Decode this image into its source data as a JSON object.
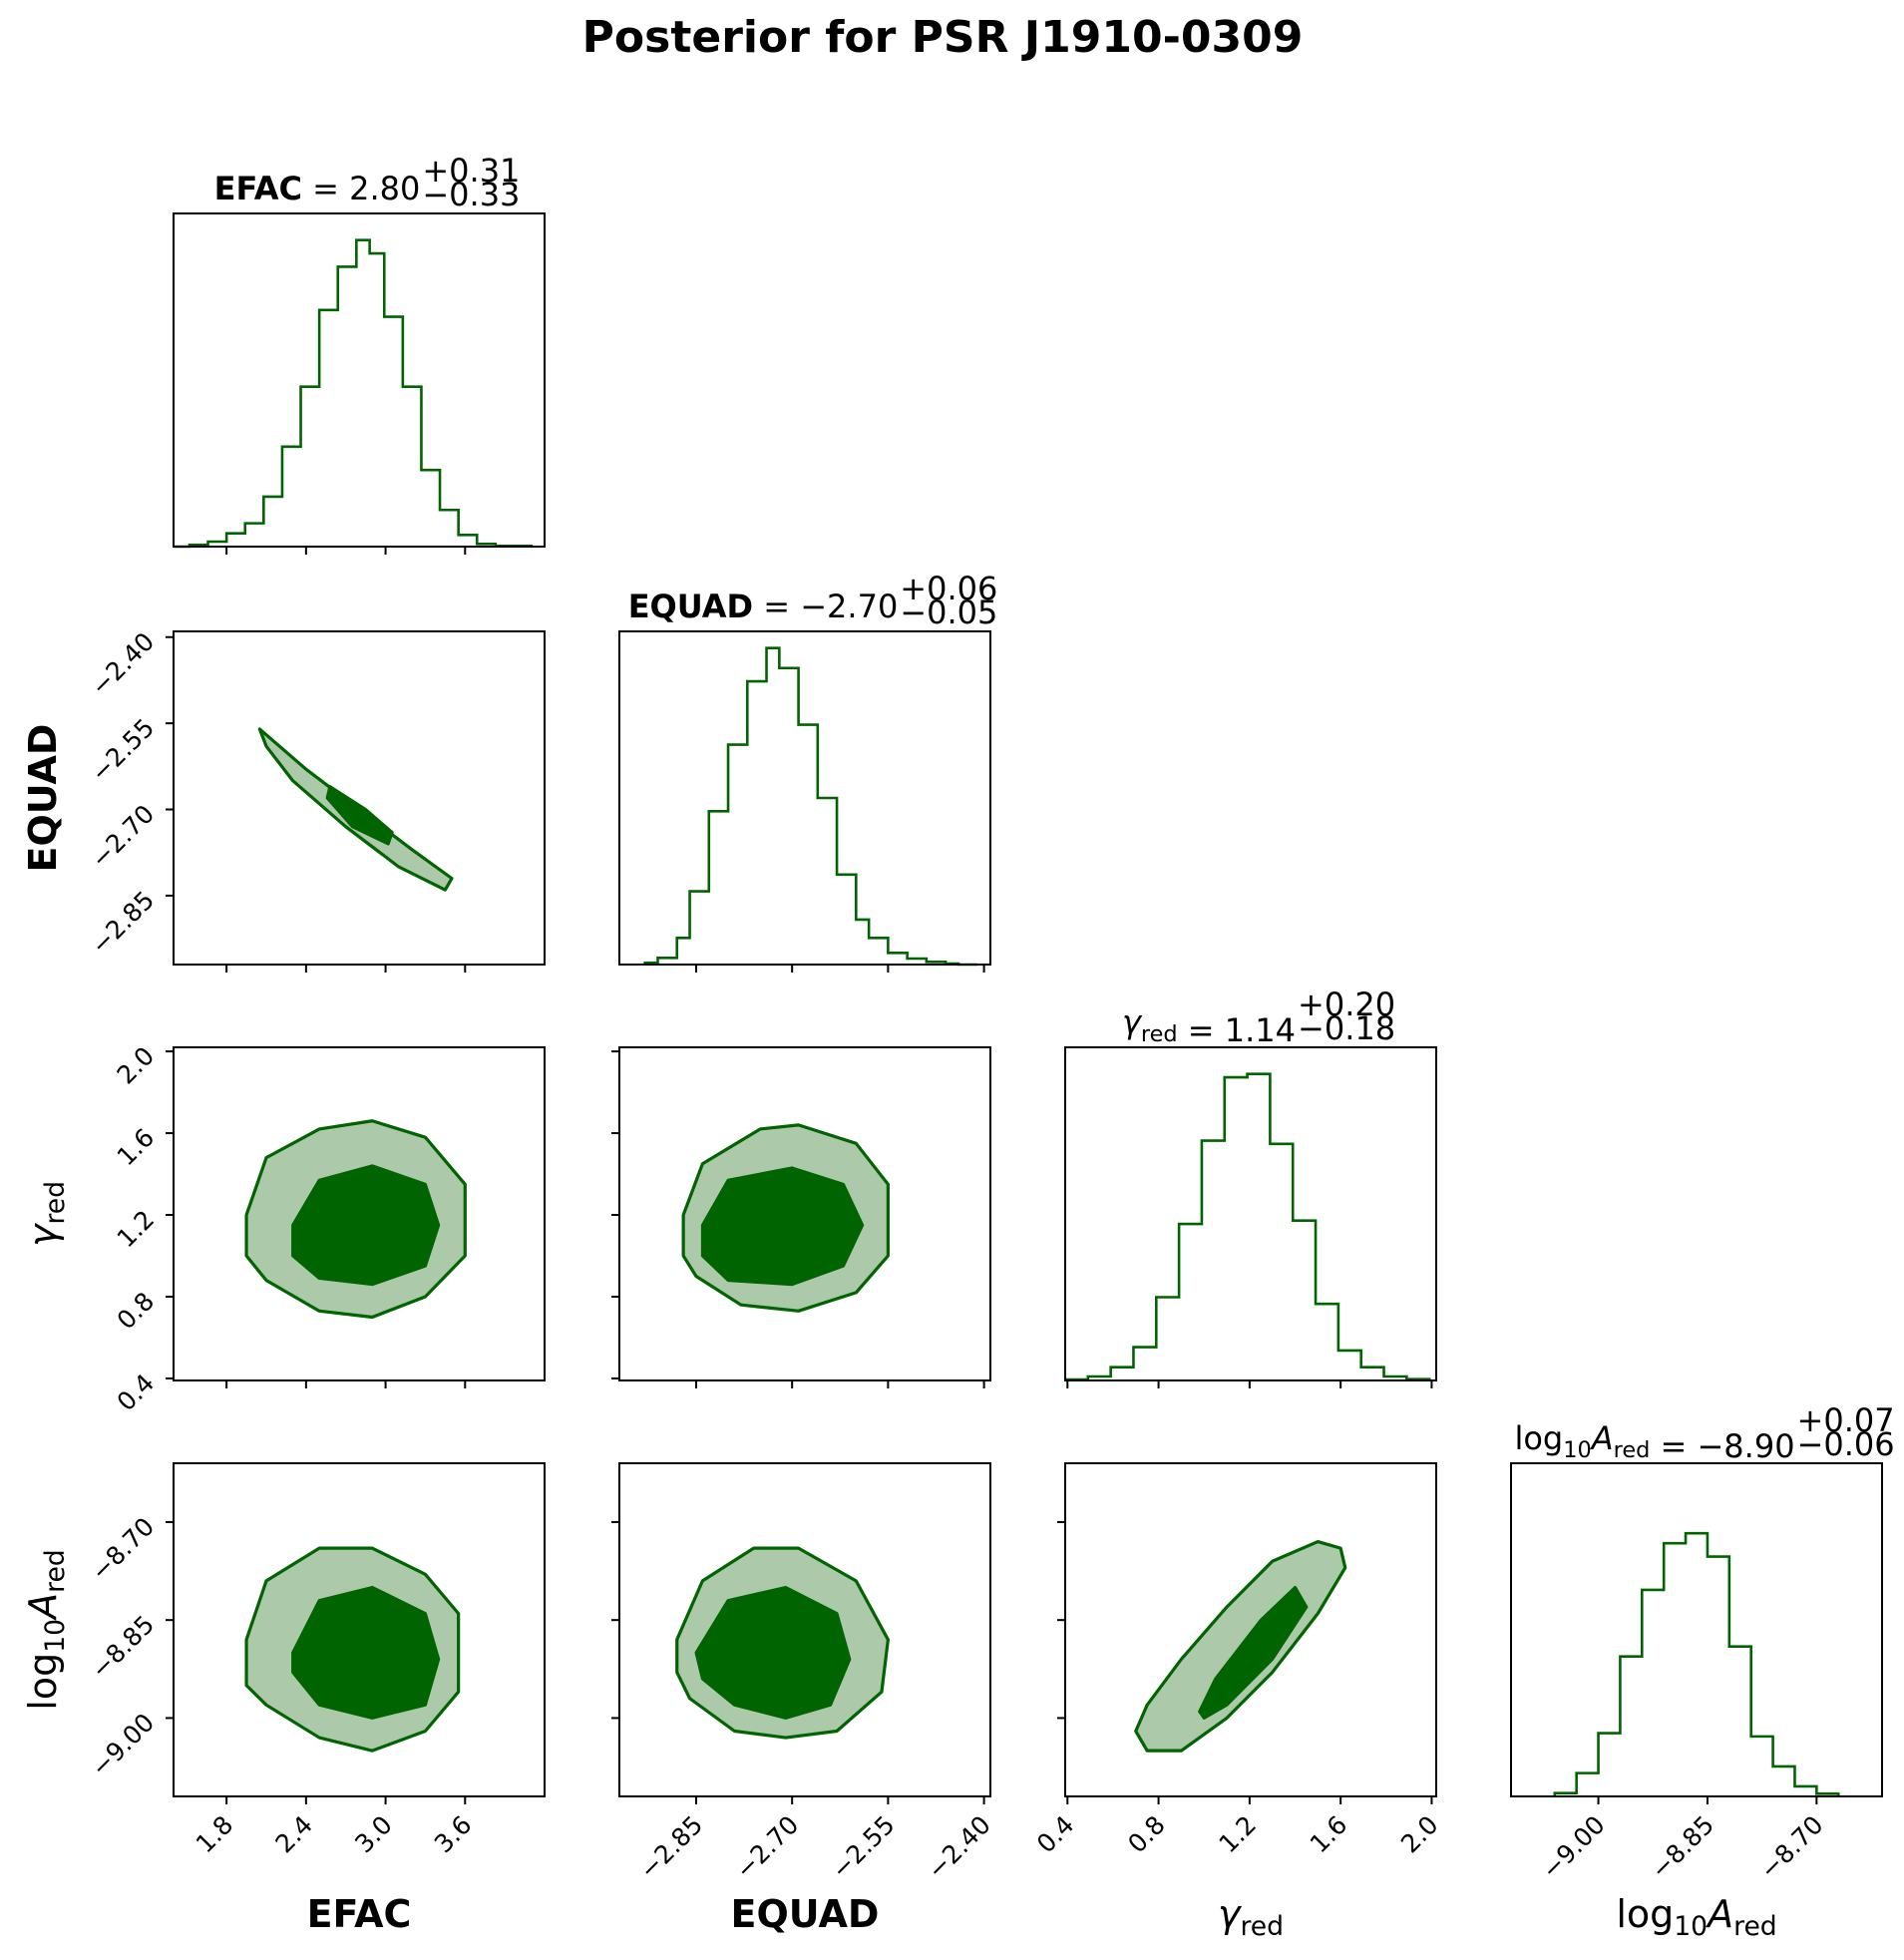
{
  "figure": {
    "title": "Posterior for PSR J1910-0309"
  },
  "parameters": [
    {
      "key": "efac",
      "name": "EFAC",
      "bold": true,
      "median": "2.80",
      "plus": "+0.31",
      "minus": "−0.33"
    },
    {
      "key": "equad",
      "name": "EQUAD",
      "bold": true,
      "median": "−2.70",
      "plus": "+0.06",
      "minus": "−0.05"
    },
    {
      "key": "gamma",
      "name": "γ",
      "sub": "red",
      "bold": false,
      "median": "1.14",
      "plus": "+0.20",
      "minus": "−0.18"
    },
    {
      "key": "log10a",
      "name": "log",
      "name_sub": "10",
      "name2": "A",
      "sub": "red",
      "bold": false,
      "median": "−8.90",
      "plus": "+0.07",
      "minus": "−0.06"
    }
  ],
  "chart_data": {
    "type": "corner",
    "colors": {
      "line": "#006400",
      "outer_fill": "#acc9aa",
      "inner_fill": "#006400"
    },
    "axes": {
      "efac": {
        "range": [
          1.4,
          4.2
        ],
        "ticks": [
          1.8,
          2.4,
          3.0,
          3.6
        ],
        "tick_labels": [
          "1.8",
          "2.4",
          "3.0",
          "3.6"
        ]
      },
      "equad": {
        "range": [
          -2.97,
          -2.39
        ],
        "ticks": [
          -2.85,
          -2.7,
          -2.55,
          -2.4
        ],
        "tick_labels": [
          "−2.85",
          "−2.70",
          "−2.55",
          "−2.40"
        ]
      },
      "gamma": {
        "range": [
          0.39,
          2.02
        ],
        "ticks": [
          0.4,
          0.8,
          1.2,
          1.6,
          2.0
        ],
        "tick_labels": [
          "0.4",
          "0.8",
          "1.2",
          "1.6",
          "2.0"
        ]
      },
      "log10a": {
        "range": [
          -9.12,
          -8.61
        ],
        "ticks": [
          -9.0,
          -8.85,
          -8.7
        ],
        "tick_labels": [
          "−9.00",
          "−8.85",
          "−8.70"
        ]
      }
    },
    "histograms": {
      "efac": {
        "edges": [
          1.4,
          1.52,
          1.66,
          1.8,
          1.94,
          2.08,
          2.22,
          2.36,
          2.5,
          2.64,
          2.78,
          2.88,
          2.99,
          3.13,
          3.27,
          3.41,
          3.55,
          3.69,
          3.83,
          4.1
        ],
        "heights": [
          0,
          0.005,
          0.015,
          0.04,
          0.07,
          0.15,
          0.3,
          0.48,
          0.71,
          0.84,
          0.92,
          0.88,
          0.69,
          0.48,
          0.23,
          0.11,
          0.035,
          0.008,
          0.002
        ]
      },
      "equad": {
        "edges": [
          -2.93,
          -2.91,
          -2.88,
          -2.86,
          -2.83,
          -2.8,
          -2.77,
          -2.74,
          -2.72,
          -2.69,
          -2.66,
          -2.63,
          -2.6,
          -2.58,
          -2.55,
          -2.52,
          -2.49,
          -2.46,
          -2.44,
          -2.41
        ],
        "heights": [
          0.005,
          0.02,
          0.08,
          0.22,
          0.46,
          0.66,
          0.85,
          0.95,
          0.89,
          0.72,
          0.5,
          0.27,
          0.135,
          0.08,
          0.035,
          0.018,
          0.008,
          0.003,
          0.0
        ]
      },
      "gamma": {
        "edges": [
          0.4,
          0.49,
          0.59,
          0.69,
          0.79,
          0.89,
          0.99,
          1.09,
          1.19,
          1.29,
          1.39,
          1.49,
          1.59,
          1.69,
          1.79,
          1.89,
          1.99
        ],
        "heights": [
          0.003,
          0.012,
          0.04,
          0.1,
          0.25,
          0.47,
          0.72,
          0.91,
          0.92,
          0.71,
          0.48,
          0.23,
          0.09,
          0.04,
          0.012,
          0.004
        ]
      },
      "log10a": {
        "edges": [
          -9.06,
          -9.03,
          -9.0,
          -8.97,
          -8.94,
          -8.91,
          -8.88,
          -8.85,
          -8.82,
          -8.79,
          -8.76,
          -8.73,
          -8.7,
          -8.67
        ],
        "heights": [
          0.01,
          0.07,
          0.19,
          0.42,
          0.62,
          0.76,
          0.79,
          0.72,
          0.45,
          0.18,
          0.09,
          0.03,
          0.008
        ]
      }
    },
    "contours": {
      "equad_vs_efac": {
        "outer": [
          [
            2.05,
            -2.56
          ],
          [
            2.4,
            -2.63
          ],
          [
            2.8,
            -2.7
          ],
          [
            3.2,
            -2.77
          ],
          [
            3.5,
            -2.82
          ],
          [
            3.45,
            -2.84
          ],
          [
            3.1,
            -2.8
          ],
          [
            2.7,
            -2.73
          ],
          [
            2.3,
            -2.65
          ],
          [
            2.1,
            -2.59
          ]
        ],
        "inner": [
          [
            2.58,
            -2.66
          ],
          [
            2.85,
            -2.7
          ],
          [
            3.05,
            -2.74
          ],
          [
            3.02,
            -2.76
          ],
          [
            2.75,
            -2.73
          ],
          [
            2.56,
            -2.68
          ]
        ]
      },
      "gamma_vs_efac": {
        "outer": [
          [
            1.95,
            1.2
          ],
          [
            2.1,
            1.48
          ],
          [
            2.5,
            1.62
          ],
          [
            2.9,
            1.66
          ],
          [
            3.3,
            1.58
          ],
          [
            3.6,
            1.35
          ],
          [
            3.6,
            1.0
          ],
          [
            3.3,
            0.8
          ],
          [
            2.9,
            0.7
          ],
          [
            2.5,
            0.73
          ],
          [
            2.1,
            0.88
          ],
          [
            1.95,
            1.0
          ]
        ],
        "inner": [
          [
            2.3,
            1.15
          ],
          [
            2.5,
            1.37
          ],
          [
            2.9,
            1.44
          ],
          [
            3.3,
            1.35
          ],
          [
            3.4,
            1.15
          ],
          [
            3.3,
            0.95
          ],
          [
            2.9,
            0.86
          ],
          [
            2.5,
            0.89
          ],
          [
            2.3,
            1.0
          ]
        ]
      },
      "gamma_vs_equad": {
        "outer": [
          [
            -2.87,
            1.2
          ],
          [
            -2.84,
            1.45
          ],
          [
            -2.75,
            1.62
          ],
          [
            -2.69,
            1.64
          ],
          [
            -2.6,
            1.55
          ],
          [
            -2.55,
            1.35
          ],
          [
            -2.55,
            1.0
          ],
          [
            -2.6,
            0.82
          ],
          [
            -2.69,
            0.73
          ],
          [
            -2.78,
            0.76
          ],
          [
            -2.85,
            0.9
          ],
          [
            -2.87,
            1.0
          ]
        ],
        "inner": [
          [
            -2.84,
            1.15
          ],
          [
            -2.8,
            1.37
          ],
          [
            -2.7,
            1.43
          ],
          [
            -2.62,
            1.35
          ],
          [
            -2.59,
            1.15
          ],
          [
            -2.62,
            0.95
          ],
          [
            -2.7,
            0.86
          ],
          [
            -2.8,
            0.88
          ],
          [
            -2.84,
            1.0
          ]
        ]
      },
      "log10a_vs_efac": {
        "outer": [
          [
            1.95,
            -8.88
          ],
          [
            2.1,
            -8.79
          ],
          [
            2.5,
            -8.74
          ],
          [
            2.9,
            -8.74
          ],
          [
            3.3,
            -8.78
          ],
          [
            3.55,
            -8.84
          ],
          [
            3.55,
            -8.96
          ],
          [
            3.3,
            -9.02
          ],
          [
            2.9,
            -9.05
          ],
          [
            2.5,
            -9.03
          ],
          [
            2.1,
            -8.98
          ],
          [
            1.95,
            -8.95
          ]
        ],
        "inner": [
          [
            2.3,
            -8.9
          ],
          [
            2.5,
            -8.82
          ],
          [
            2.9,
            -8.8
          ],
          [
            3.3,
            -8.84
          ],
          [
            3.4,
            -8.91
          ],
          [
            3.3,
            -8.98
          ],
          [
            2.9,
            -9.0
          ],
          [
            2.5,
            -8.98
          ],
          [
            2.3,
            -8.93
          ]
        ]
      },
      "log10a_vs_equad": {
        "outer": [
          [
            -2.88,
            -8.88
          ],
          [
            -2.84,
            -8.79
          ],
          [
            -2.76,
            -8.74
          ],
          [
            -2.69,
            -8.74
          ],
          [
            -2.6,
            -8.79
          ],
          [
            -2.55,
            -8.88
          ],
          [
            -2.56,
            -8.96
          ],
          [
            -2.63,
            -9.02
          ],
          [
            -2.71,
            -9.03
          ],
          [
            -2.79,
            -9.02
          ],
          [
            -2.86,
            -8.97
          ],
          [
            -2.88,
            -8.93
          ]
        ],
        "inner": [
          [
            -2.85,
            -8.9
          ],
          [
            -2.8,
            -8.82
          ],
          [
            -2.71,
            -8.8
          ],
          [
            -2.63,
            -8.84
          ],
          [
            -2.61,
            -8.91
          ],
          [
            -2.64,
            -8.98
          ],
          [
            -2.71,
            -9.0
          ],
          [
            -2.79,
            -8.98
          ],
          [
            -2.84,
            -8.94
          ]
        ]
      },
      "log10a_vs_gamma": {
        "outer": [
          [
            0.7,
            -9.02
          ],
          [
            0.75,
            -8.98
          ],
          [
            0.9,
            -8.91
          ],
          [
            1.1,
            -8.83
          ],
          [
            1.3,
            -8.76
          ],
          [
            1.5,
            -8.73
          ],
          [
            1.6,
            -8.74
          ],
          [
            1.62,
            -8.77
          ],
          [
            1.5,
            -8.84
          ],
          [
            1.3,
            -8.93
          ],
          [
            1.1,
            -9.0
          ],
          [
            0.9,
            -9.05
          ],
          [
            0.75,
            -9.05
          ]
        ],
        "inner": [
          [
            0.98,
            -8.99
          ],
          [
            1.05,
            -8.94
          ],
          [
            1.25,
            -8.85
          ],
          [
            1.4,
            -8.8
          ],
          [
            1.45,
            -8.83
          ],
          [
            1.3,
            -8.91
          ],
          [
            1.1,
            -8.98
          ],
          [
            1.0,
            -9.0
          ]
        ]
      }
    }
  }
}
